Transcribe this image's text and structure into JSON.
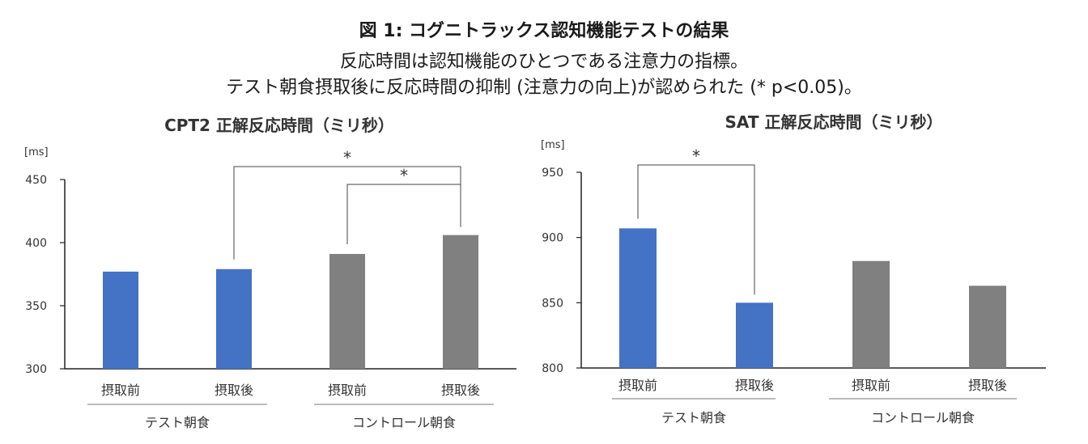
{
  "figure": {
    "title": "図 1:  コグニトラックス認知機能テストの結果",
    "subtitle1": "反応時間は認知機能のひとつである注意力の指標。",
    "subtitle2": "テスト朝食摂取後に反応時間の抑制 (注意力の向上)が認められた (* p<0.05)。"
  },
  "colors": {
    "test": "#4472C4",
    "control": "#808080"
  },
  "chart_data": [
    {
      "type": "bar",
      "title": "CPT2 正解反応時間（ミリ秒）",
      "ylabel": "[ms]",
      "ylim": [
        300,
        450
      ],
      "yticks": [
        300,
        350,
        400,
        450
      ],
      "categories": [
        "摂取前",
        "摂取後",
        "摂取前",
        "摂取後"
      ],
      "groups": [
        {
          "label": "テスト朝食",
          "indices": [
            0,
            1
          ]
        },
        {
          "label": "コントロール朝食",
          "indices": [
            2,
            3
          ]
        }
      ],
      "values": [
        377,
        379,
        391,
        406
      ],
      "bar_colors": [
        "test",
        "test",
        "control",
        "control"
      ],
      "significance": [
        {
          "from": 1,
          "to": 3,
          "label": "*"
        },
        {
          "from": 2,
          "to": 3,
          "label": "*"
        }
      ]
    },
    {
      "type": "bar",
      "title": "SAT 正解反応時間（ミリ秒）",
      "ylabel": "[ms]",
      "ylim": [
        800,
        950
      ],
      "yticks": [
        800,
        850,
        900,
        950
      ],
      "categories": [
        "摂取前",
        "摂取後",
        "摂取前",
        "摂取後"
      ],
      "groups": [
        {
          "label": "テスト朝食",
          "indices": [
            0,
            1
          ]
        },
        {
          "label": "コントロール朝食",
          "indices": [
            2,
            3
          ]
        }
      ],
      "values": [
        907,
        850,
        882,
        863
      ],
      "bar_colors": [
        "test",
        "test",
        "control",
        "control"
      ],
      "significance": [
        {
          "from": 0,
          "to": 1,
          "label": "*"
        }
      ]
    }
  ]
}
